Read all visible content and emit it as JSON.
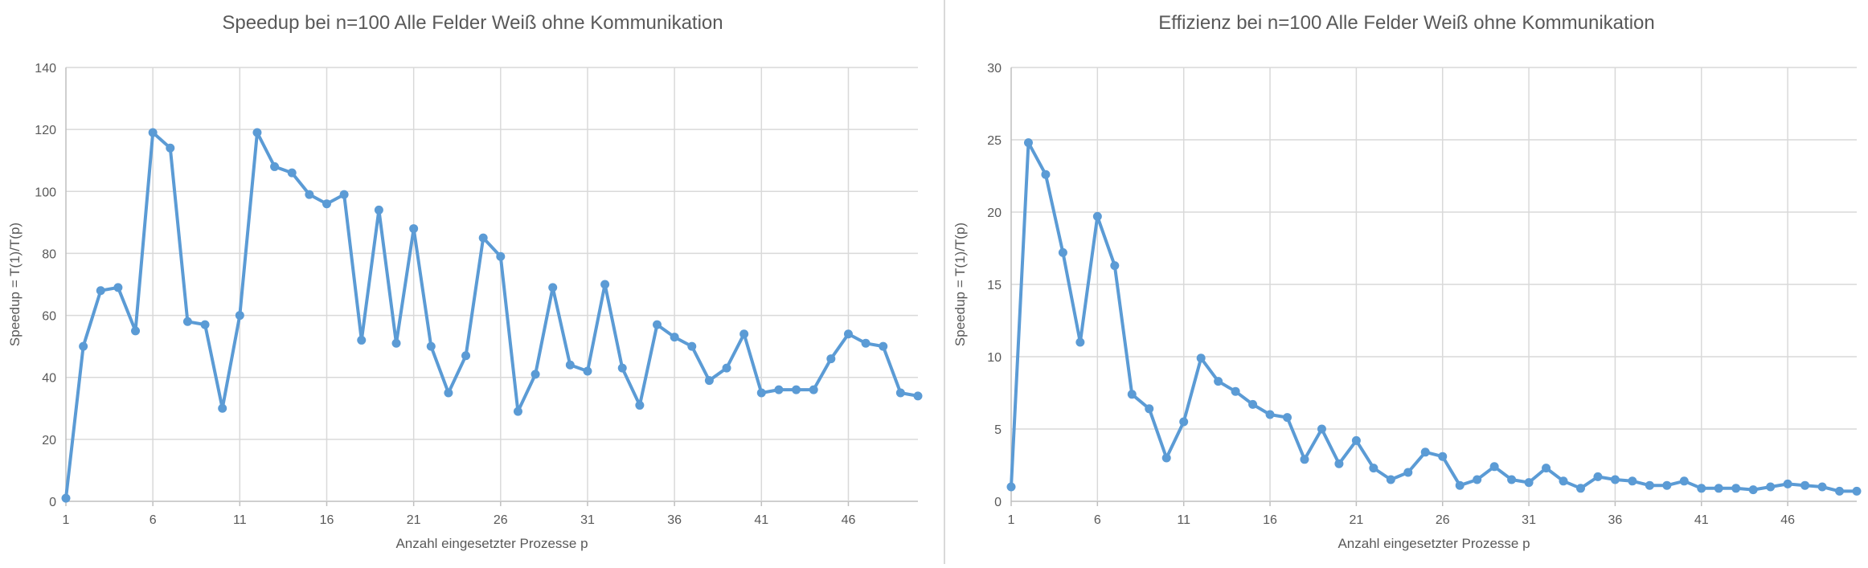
{
  "colors": {
    "series": "#5B9BD5",
    "grid": "#D9D9D9",
    "axis": "#BFBFBF",
    "text": "#595959",
    "title": "#595959"
  },
  "chart_data": [
    {
      "type": "line",
      "title": "Speedup bei n=100 Alle Felder Weiß ohne Kommunikation",
      "xlabel": "Anzahl eingesetzter Prozesse p",
      "ylabel": "Speedup = T(1)/T(p)",
      "xlim": [
        1,
        50
      ],
      "ylim": [
        0,
        140
      ],
      "x_ticks": [
        "1",
        "6",
        "11",
        "16",
        "21",
        "26",
        "31",
        "36",
        "41",
        "46"
      ],
      "y_ticks": [
        "0",
        "20",
        "40",
        "60",
        "80",
        "100",
        "120",
        "140"
      ],
      "grid": true,
      "legend": "none",
      "series": [
        {
          "x": [
            1,
            2,
            3,
            4,
            5,
            6,
            7,
            8,
            9,
            10,
            11,
            12,
            13,
            14,
            15,
            16,
            17,
            18,
            19,
            20,
            21,
            22,
            23,
            24,
            25,
            26,
            27,
            28,
            29,
            30,
            31,
            32,
            33,
            34,
            35,
            36,
            37,
            38,
            39,
            40,
            41,
            42,
            43,
            44,
            45,
            46,
            47,
            48,
            49,
            50
          ],
          "values": [
            1,
            50,
            68,
            69,
            55,
            119,
            114,
            58,
            57,
            30,
            60,
            119,
            108,
            106,
            99,
            96,
            99,
            52,
            94,
            51,
            88,
            50,
            35,
            47,
            85,
            79,
            29,
            41,
            69,
            44,
            42,
            70,
            43,
            31,
            57,
            53,
            50,
            39,
            43,
            54,
            35,
            36,
            36,
            36,
            46,
            54,
            51,
            50,
            35,
            34
          ]
        }
      ]
    },
    {
      "type": "line",
      "title": "Effizienz bei n=100 Alle Felder Weiß ohne Kommunikation",
      "xlabel": "Anzahl eingesetzter Prozesse p",
      "ylabel": "Speedup = T(1)/T(p)",
      "xlim": [
        1,
        50
      ],
      "ylim": [
        0,
        30
      ],
      "x_ticks": [
        "1",
        "6",
        "11",
        "16",
        "21",
        "26",
        "31",
        "36",
        "41",
        "46"
      ],
      "y_ticks": [
        "0",
        "5",
        "10",
        "15",
        "20",
        "25",
        "30"
      ],
      "grid": true,
      "legend": "none",
      "series": [
        {
          "x": [
            1,
            2,
            3,
            4,
            5,
            6,
            7,
            8,
            9,
            10,
            11,
            12,
            13,
            14,
            15,
            16,
            17,
            18,
            19,
            20,
            21,
            22,
            23,
            24,
            25,
            26,
            27,
            28,
            29,
            30,
            31,
            32,
            33,
            34,
            35,
            36,
            37,
            38,
            39,
            40,
            41,
            42,
            43,
            44,
            45,
            46,
            47,
            48,
            49,
            50
          ],
          "values": [
            1,
            24.8,
            22.6,
            17.2,
            11.0,
            19.7,
            16.3,
            7.4,
            6.4,
            3.0,
            5.5,
            9.9,
            8.3,
            7.6,
            6.7,
            6.0,
            5.8,
            2.9,
            5.0,
            2.6,
            4.2,
            2.3,
            1.5,
            2.0,
            3.4,
            3.1,
            1.1,
            1.5,
            2.4,
            1.5,
            1.3,
            2.3,
            1.4,
            0.9,
            1.7,
            1.5,
            1.4,
            1.1,
            1.1,
            1.4,
            0.9,
            0.9,
            0.9,
            0.8,
            1.0,
            1.2,
            1.1,
            1.0,
            0.7,
            0.7
          ]
        }
      ]
    }
  ]
}
